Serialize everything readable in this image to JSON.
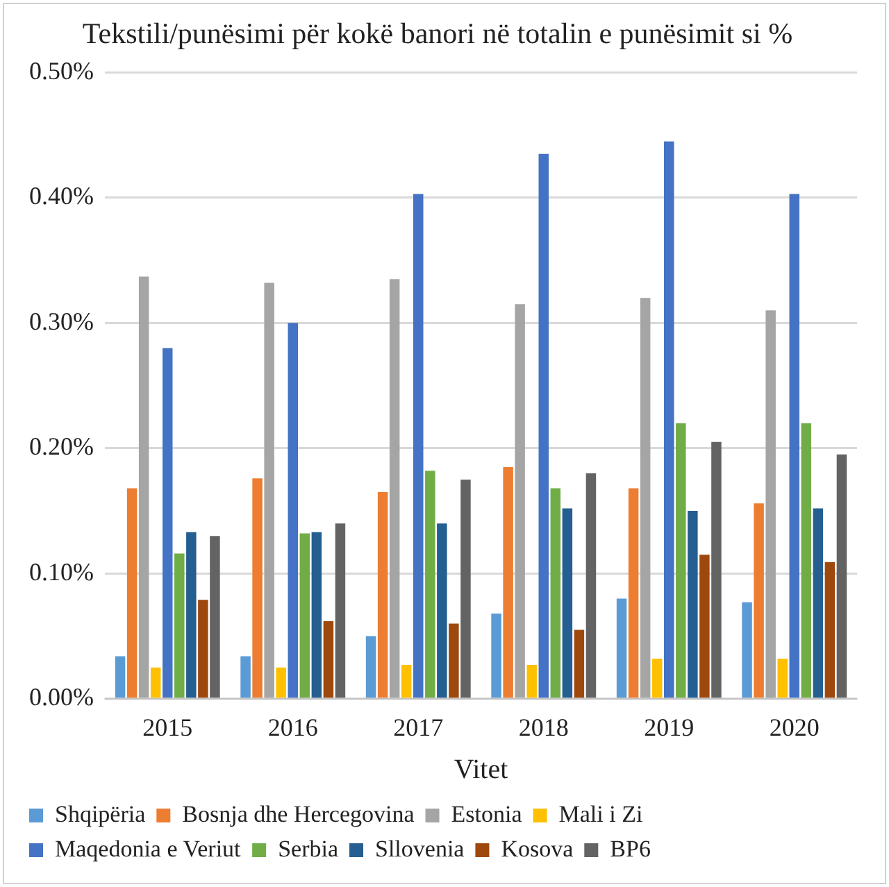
{
  "chart_data": {
    "type": "bar",
    "title": "Tekstili/punësimi për kokë banori në totalin e punësimit si %",
    "xlabel": "Vitet",
    "categories": [
      "2015",
      "2016",
      "2017",
      "2018",
      "2019",
      "2020"
    ],
    "series": [
      {
        "name": "Shqipëria",
        "color": "#5b9bd5",
        "values": [
          0.034,
          0.034,
          0.05,
          0.068,
          0.08,
          0.077
        ]
      },
      {
        "name": "Bosnja dhe Hercegovina",
        "color": "#ed7d31",
        "values": [
          0.168,
          0.176,
          0.165,
          0.185,
          0.168,
          0.156
        ]
      },
      {
        "name": "Estonia",
        "color": "#a5a5a5",
        "values": [
          0.337,
          0.332,
          0.335,
          0.315,
          0.32,
          0.31
        ]
      },
      {
        "name": "Mali i Zi",
        "color": "#ffc000",
        "values": [
          0.025,
          0.025,
          0.027,
          0.027,
          0.032,
          0.032
        ]
      },
      {
        "name": "Maqedonia e Veriut",
        "color": "#4472c4",
        "values": [
          0.28,
          0.3,
          0.403,
          0.435,
          0.445,
          0.403
        ]
      },
      {
        "name": "Serbia",
        "color": "#70ad47",
        "values": [
          0.116,
          0.132,
          0.182,
          0.168,
          0.22,
          0.22
        ]
      },
      {
        "name": "Sllovenia",
        "color": "#255e91",
        "values": [
          0.133,
          0.133,
          0.14,
          0.152,
          0.15,
          0.152
        ]
      },
      {
        "name": "Kosova",
        "color": "#9e480e",
        "values": [
          0.079,
          0.062,
          0.06,
          0.055,
          0.115,
          0.109
        ]
      },
      {
        "name": "BP6",
        "color": "#636363",
        "values": [
          0.13,
          0.14,
          0.175,
          0.18,
          0.205,
          0.195
        ]
      }
    ],
    "ylim": [
      0,
      0.5
    ],
    "yticks": [
      {
        "value": 0,
        "label": "0.00%"
      },
      {
        "value": 0.1,
        "label": "0.10%"
      },
      {
        "value": 0.2,
        "label": "0.20%"
      },
      {
        "value": 0.3,
        "label": "0.30%"
      },
      {
        "value": 0.4,
        "label": "0.40%"
      },
      {
        "value": 0.5,
        "label": "0.50%"
      }
    ],
    "grid": "y",
    "legend": "bottom"
  }
}
